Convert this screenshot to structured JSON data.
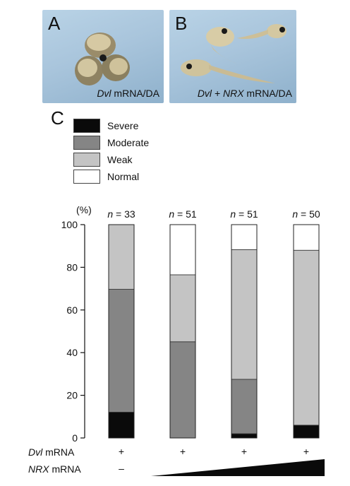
{
  "panels": {
    "a": {
      "letter": "A",
      "caption_italic": "Dvl",
      "caption_rest": " mRNA/DA"
    },
    "b": {
      "letter": "B",
      "caption_italic": "Dvl + NRX",
      "caption_rest": " mRNA/DA"
    },
    "c": {
      "letter": "C"
    }
  },
  "legend": [
    {
      "label": "Severe",
      "color": "#0a0a0a"
    },
    {
      "label": "Moderate",
      "color": "#858585"
    },
    {
      "label": "Weak",
      "color": "#c4c4c4"
    },
    {
      "label": "Normal",
      "color": "#ffffff"
    }
  ],
  "chart_data": {
    "type": "bar",
    "stacked": true,
    "y_unit_label": "(%)",
    "ylim": [
      0,
      100
    ],
    "yticks": [
      "0",
      "20",
      "40",
      "60",
      "80",
      "100"
    ],
    "categories": [
      "",
      "",
      "",
      ""
    ],
    "n_prefix": "n",
    "n_values": [
      "= 33",
      "= 51",
      "= 51",
      "= 50"
    ],
    "series": [
      {
        "name": "Severe",
        "color": "#0a0a0a",
        "values": [
          12.1,
          0,
          2.0,
          6.0
        ]
      },
      {
        "name": "Moderate",
        "color": "#858585",
        "values": [
          57.6,
          45.1,
          25.5,
          0
        ]
      },
      {
        "name": "Weak",
        "color": "#c4c4c4",
        "values": [
          30.3,
          31.4,
          60.8,
          82.0
        ]
      },
      {
        "name": "Normal",
        "color": "#ffffff",
        "values": [
          0,
          23.5,
          11.7,
          12.0
        ]
      }
    ]
  },
  "conditions": {
    "dvl_label_italic": "Dvl",
    "dvl_label_rest": " mRNA",
    "dvl_marks": [
      "+",
      "+",
      "+",
      "+"
    ],
    "nrx_label_italic": "NRX",
    "nrx_label_rest": " mRNA",
    "nrx_first_mark": "–"
  }
}
